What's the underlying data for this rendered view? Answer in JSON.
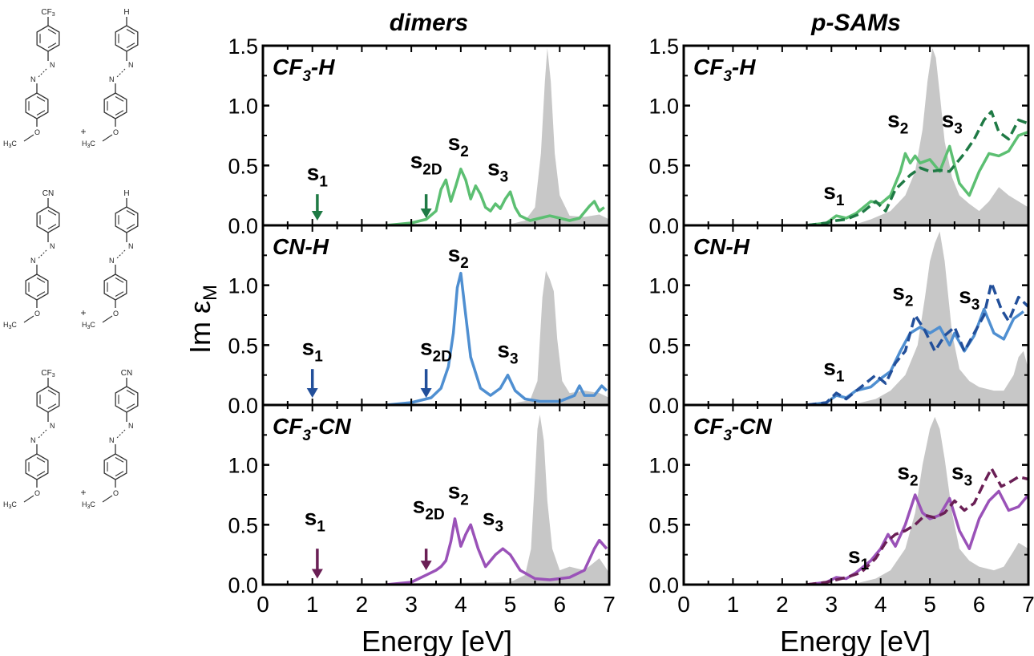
{
  "figure": {
    "columns": [
      {
        "title": "dimers"
      },
      {
        "title": "p-SAMs"
      }
    ],
    "ylabel": {
      "main": "Im ε",
      "sub": "M"
    },
    "xlabel": "Energy [eV]",
    "rows": [
      {
        "label_main": "CF",
        "label_sub": "3",
        "label_rest": "-H",
        "molecules": [
          {
            "top": "CF",
            "top_sub": "3",
            "bottom": "H3C",
            "bottom_sub": "3"
          },
          {
            "top": "H",
            "top_sub": "",
            "bottom": "H3C",
            "bottom_sub": "3"
          }
        ]
      },
      {
        "label_main": "CN-H",
        "label_sub": "",
        "label_rest": "",
        "molecules": [
          {
            "top": "CN",
            "top_sub": ""
          },
          {
            "top": "H",
            "top_sub": ""
          }
        ]
      },
      {
        "label_main": "CF",
        "label_sub": "3",
        "label_rest": "-CN",
        "molecules": [
          {
            "top": "CF",
            "top_sub": "3"
          },
          {
            "top": "CN",
            "top_sub": ""
          }
        ]
      }
    ],
    "molecule_text": {
      "plus": "+",
      "O": "O",
      "N": "N",
      "H3C": "H",
      "H3C_sub": "3",
      "H3C_C": "C"
    }
  },
  "colors": {
    "green": "#5cbf72",
    "green_dark": "#1f7a45",
    "blue": "#4f8fd1",
    "blue_dark": "#224f9a",
    "purple": "#9a52b8",
    "purple_dark": "#6a1f55",
    "gray_fill": "#c7c7c7"
  },
  "chart_data": [
    {
      "type": "line",
      "panel": "dimers CF3-H",
      "xlim": [
        0,
        7
      ],
      "ylim": [
        0,
        1.5
      ],
      "yticks": [
        "0.0",
        "0.5",
        "1.0",
        "1.5"
      ],
      "xticks": [
        "0",
        "1",
        "2",
        "3",
        "4",
        "5",
        "6",
        "7"
      ],
      "gray_area": {
        "x": [
          0,
          5.0,
          5.3,
          5.5,
          5.62,
          5.7,
          5.75,
          5.82,
          5.9,
          6.0,
          6.2,
          6.5,
          6.8,
          7.0
        ],
        "y": [
          0,
          0.01,
          0.04,
          0.15,
          0.6,
          1.2,
          1.48,
          1.2,
          0.6,
          0.25,
          0.08,
          0.07,
          0.09,
          0.05
        ]
      },
      "series": [
        {
          "style": "solid",
          "color": "green",
          "x": [
            2.5,
            3.0,
            3.3,
            3.5,
            3.6,
            3.7,
            3.8,
            3.9,
            4.0,
            4.1,
            4.2,
            4.3,
            4.4,
            4.5,
            4.6,
            4.7,
            4.8,
            4.9,
            5.0,
            5.1,
            5.2,
            5.4,
            5.6,
            5.8,
            6.0,
            6.2,
            6.4,
            6.6,
            6.7,
            6.8,
            6.9
          ],
          "y": [
            0.0,
            0.02,
            0.05,
            0.12,
            0.3,
            0.38,
            0.2,
            0.33,
            0.47,
            0.38,
            0.22,
            0.33,
            0.26,
            0.15,
            0.12,
            0.18,
            0.14,
            0.22,
            0.28,
            0.15,
            0.08,
            0.04,
            0.06,
            0.08,
            0.06,
            0.04,
            0.06,
            0.16,
            0.2,
            0.12,
            0.15
          ]
        }
      ],
      "annotations": [
        {
          "text": "s",
          "sub": "1",
          "x": 1.1,
          "y": 0.38
        },
        {
          "text": "s",
          "sub": "2D",
          "x": 3.3,
          "y": 0.48
        },
        {
          "text": "s",
          "sub": "2",
          "x": 3.95,
          "y": 0.63
        },
        {
          "text": "s",
          "sub": "3",
          "x": 4.75,
          "y": 0.42
        }
      ],
      "arrows": [
        {
          "x": 1.1,
          "y_top": 0.26,
          "y_bottom": 0.04,
          "color": "green_dark"
        },
        {
          "x": 3.3,
          "y_top": 0.26,
          "y_bottom": 0.06,
          "color": "green_dark"
        }
      ]
    },
    {
      "type": "line",
      "panel": "dimers CN-H",
      "xlim": [
        0,
        7
      ],
      "ylim": [
        0,
        1.5
      ],
      "yticks": [
        "0.0",
        "0.5",
        "1.0"
      ],
      "gray_area": {
        "x": [
          0,
          5.0,
          5.4,
          5.55,
          5.65,
          5.72,
          5.8,
          5.88,
          5.95,
          6.05,
          6.2,
          6.5,
          6.8,
          7.0
        ],
        "y": [
          0,
          0.01,
          0.04,
          0.2,
          0.9,
          1.12,
          1.05,
          0.95,
          0.55,
          0.2,
          0.1,
          0.12,
          0.1,
          0.06
        ]
      },
      "series": [
        {
          "style": "solid",
          "color": "blue",
          "x": [
            2.5,
            3.0,
            3.4,
            3.6,
            3.75,
            3.85,
            3.93,
            4.0,
            4.1,
            4.2,
            4.4,
            4.6,
            4.8,
            4.95,
            5.1,
            5.3,
            5.6,
            6.0,
            6.3,
            6.4,
            6.5,
            6.7,
            6.85,
            6.95
          ],
          "y": [
            0.0,
            0.02,
            0.06,
            0.14,
            0.32,
            0.6,
            0.98,
            1.1,
            0.75,
            0.4,
            0.14,
            0.08,
            0.14,
            0.25,
            0.12,
            0.05,
            0.03,
            0.03,
            0.08,
            0.16,
            0.08,
            0.08,
            0.16,
            0.12
          ]
        }
      ],
      "annotations": [
        {
          "text": "s",
          "sub": "1",
          "x": 1.0,
          "y": 0.42
        },
        {
          "text": "s",
          "sub": "2D",
          "x": 3.5,
          "y": 0.42
        },
        {
          "text": "s",
          "sub": "2",
          "x": 3.95,
          "y": 1.2
        },
        {
          "text": "s",
          "sub": "3",
          "x": 4.95,
          "y": 0.4
        }
      ],
      "arrows": [
        {
          "x": 1.0,
          "y_top": 0.3,
          "y_bottom": 0.06,
          "color": "blue_dark"
        },
        {
          "x": 3.3,
          "y_top": 0.3,
          "y_bottom": 0.06,
          "color": "blue_dark"
        }
      ]
    },
    {
      "type": "line",
      "panel": "dimers CF3-CN",
      "xlim": [
        0,
        7
      ],
      "ylim": [
        0,
        1.5
      ],
      "yticks": [
        "0.0",
        "0.5",
        "1.0"
      ],
      "gray_area": {
        "x": [
          0,
          5.0,
          5.3,
          5.42,
          5.5,
          5.55,
          5.6,
          5.68,
          5.75,
          5.85,
          6.0,
          6.2,
          6.5,
          6.8,
          7.0
        ],
        "y": [
          0,
          0.02,
          0.08,
          0.3,
          0.9,
          1.3,
          1.42,
          1.2,
          0.7,
          0.3,
          0.12,
          0.15,
          0.12,
          0.22,
          0.1
        ]
      },
      "series": [
        {
          "style": "solid",
          "color": "purple",
          "x": [
            2.5,
            3.0,
            3.3,
            3.5,
            3.6,
            3.7,
            3.8,
            3.88,
            4.0,
            4.1,
            4.2,
            4.35,
            4.5,
            4.7,
            4.85,
            5.0,
            5.2,
            5.5,
            5.8,
            6.2,
            6.5,
            6.7,
            6.8,
            6.95
          ],
          "y": [
            0.0,
            0.02,
            0.08,
            0.12,
            0.15,
            0.2,
            0.36,
            0.55,
            0.32,
            0.42,
            0.5,
            0.3,
            0.15,
            0.25,
            0.3,
            0.25,
            0.12,
            0.05,
            0.04,
            0.06,
            0.12,
            0.3,
            0.37,
            0.3
          ]
        }
      ],
      "annotations": [
        {
          "text": "s",
          "sub": "1",
          "x": 1.05,
          "y": 0.5
        },
        {
          "text": "s",
          "sub": "2D",
          "x": 3.35,
          "y": 0.6
        },
        {
          "text": "s",
          "sub": "2",
          "x": 3.95,
          "y": 0.72
        },
        {
          "text": "s",
          "sub": "3",
          "x": 4.65,
          "y": 0.5
        }
      ],
      "arrows": [
        {
          "x": 1.1,
          "y_top": 0.3,
          "y_bottom": 0.05,
          "color": "purple_dark"
        },
        {
          "x": 3.3,
          "y_top": 0.3,
          "y_bottom": 0.12,
          "color": "purple_dark"
        }
      ]
    },
    {
      "type": "line",
      "panel": "p-SAMs CF3-H",
      "xlim": [
        0,
        7
      ],
      "ylim": [
        0,
        1.5
      ],
      "yticks": [
        "0.0",
        "0.5",
        "1.0",
        "1.5"
      ],
      "xticks": [
        "0",
        "1",
        "2",
        "3",
        "4",
        "5",
        "6",
        "7"
      ],
      "gray_area": {
        "x": [
          0,
          3.5,
          3.8,
          4.2,
          4.5,
          4.7,
          4.85,
          4.95,
          5.05,
          5.12,
          5.2,
          5.3,
          5.45,
          5.6,
          5.8,
          6.0,
          6.2,
          6.4,
          6.6,
          6.8,
          7.0
        ],
        "y": [
          0,
          0.01,
          0.05,
          0.12,
          0.25,
          0.45,
          0.8,
          1.2,
          1.48,
          1.4,
          1.1,
          0.7,
          0.4,
          0.25,
          0.18,
          0.12,
          0.2,
          0.32,
          0.25,
          0.2,
          0.15
        ]
      },
      "series": [
        {
          "style": "solid",
          "color": "green",
          "x": [
            2.5,
            2.9,
            3.1,
            3.3,
            3.5,
            3.8,
            4.0,
            4.2,
            4.4,
            4.5,
            4.6,
            4.7,
            4.8,
            5.0,
            5.2,
            5.4,
            5.5,
            5.6,
            5.8,
            6.0,
            6.2,
            6.4,
            6.6,
            6.8,
            7.0
          ],
          "y": [
            0.0,
            0.02,
            0.08,
            0.06,
            0.1,
            0.2,
            0.18,
            0.25,
            0.45,
            0.6,
            0.52,
            0.58,
            0.52,
            0.55,
            0.45,
            0.66,
            0.5,
            0.35,
            0.25,
            0.45,
            0.6,
            0.58,
            0.62,
            0.75,
            0.78
          ]
        },
        {
          "style": "dashed",
          "color": "green_dark",
          "x": [
            2.5,
            2.9,
            3.1,
            3.3,
            3.6,
            3.9,
            4.1,
            4.3,
            4.6,
            4.8,
            5.0,
            5.2,
            5.4,
            5.7,
            5.9,
            6.1,
            6.25,
            6.4,
            6.6,
            6.8,
            7.0
          ],
          "y": [
            0.0,
            0.02,
            0.04,
            0.05,
            0.1,
            0.2,
            0.12,
            0.3,
            0.42,
            0.48,
            0.45,
            0.46,
            0.45,
            0.6,
            0.72,
            0.88,
            0.95,
            0.78,
            0.72,
            0.88,
            0.85
          ]
        }
      ],
      "annotations": [
        {
          "text": "s",
          "sub": "1",
          "x": 3.05,
          "y": 0.22
        },
        {
          "text": "s",
          "sub": "2",
          "x": 4.35,
          "y": 0.82
        },
        {
          "text": "s",
          "sub": "3",
          "x": 5.45,
          "y": 0.82
        }
      ]
    },
    {
      "type": "line",
      "panel": "p-SAMs CN-H",
      "xlim": [
        0,
        7
      ],
      "ylim": [
        0,
        1.5
      ],
      "yticks": [
        "0.0",
        "0.5",
        "1.0"
      ],
      "gray_area": {
        "x": [
          0,
          3.5,
          3.9,
          4.2,
          4.5,
          4.75,
          4.9,
          5.0,
          5.1,
          5.2,
          5.3,
          5.45,
          5.6,
          5.8,
          6.0,
          6.3,
          6.5,
          6.7,
          6.8,
          6.9,
          7.0
        ],
        "y": [
          0,
          0.01,
          0.05,
          0.12,
          0.25,
          0.5,
          0.9,
          1.2,
          1.35,
          1.45,
          1.2,
          0.6,
          0.3,
          0.2,
          0.15,
          0.12,
          0.12,
          0.25,
          0.4,
          0.45,
          0.3
        ]
      },
      "series": [
        {
          "style": "solid",
          "color": "blue",
          "x": [
            2.5,
            2.9,
            3.1,
            3.3,
            3.5,
            3.8,
            4.0,
            4.2,
            4.4,
            4.6,
            4.8,
            5.0,
            5.2,
            5.4,
            5.5,
            5.7,
            5.9,
            6.1,
            6.3,
            6.5,
            6.7,
            6.9
          ],
          "y": [
            0.0,
            0.02,
            0.08,
            0.06,
            0.12,
            0.15,
            0.22,
            0.28,
            0.45,
            0.6,
            0.65,
            0.6,
            0.65,
            0.5,
            0.6,
            0.45,
            0.58,
            0.8,
            0.6,
            0.55,
            0.72,
            0.78
          ]
        },
        {
          "style": "dashed",
          "color": "blue_dark",
          "x": [
            2.5,
            2.9,
            3.1,
            3.3,
            3.6,
            3.9,
            4.1,
            4.3,
            4.5,
            4.7,
            4.9,
            5.1,
            5.3,
            5.5,
            5.7,
            5.9,
            6.1,
            6.25,
            6.45,
            6.6,
            6.8,
            7.0
          ],
          "y": [
            0.0,
            0.02,
            0.1,
            0.05,
            0.15,
            0.25,
            0.18,
            0.35,
            0.45,
            0.75,
            0.62,
            0.45,
            0.58,
            0.65,
            0.45,
            0.6,
            0.75,
            1.02,
            0.8,
            0.7,
            0.9,
            0.82
          ]
        }
      ],
      "annotations": [
        {
          "text": "s",
          "sub": "1",
          "x": 3.05,
          "y": 0.25
        },
        {
          "text": "s",
          "sub": "2",
          "x": 4.45,
          "y": 0.88
        },
        {
          "text": "s",
          "sub": "3",
          "x": 5.8,
          "y": 0.85
        }
      ]
    },
    {
      "type": "line",
      "panel": "p-SAMs CF3-CN",
      "xlim": [
        0,
        7
      ],
      "ylim": [
        0,
        1.5
      ],
      "yticks": [
        "0.0",
        "0.5",
        "1.0"
      ],
      "gray_area": {
        "x": [
          0,
          3.5,
          3.9,
          4.2,
          4.5,
          4.7,
          4.85,
          5.0,
          5.1,
          5.2,
          5.3,
          5.45,
          5.6,
          5.8,
          6.0,
          6.3,
          6.5,
          6.7,
          6.8,
          7.0
        ],
        "y": [
          0,
          0.01,
          0.05,
          0.12,
          0.3,
          0.6,
          1.0,
          1.3,
          1.4,
          1.3,
          1.05,
          0.6,
          0.3,
          0.2,
          0.15,
          0.12,
          0.15,
          0.28,
          0.35,
          0.3
        ]
      },
      "series": [
        {
          "style": "solid",
          "color": "purple",
          "x": [
            2.5,
            2.9,
            3.1,
            3.3,
            3.5,
            3.8,
            4.0,
            4.15,
            4.3,
            4.5,
            4.7,
            4.85,
            5.0,
            5.2,
            5.4,
            5.6,
            5.8,
            6.0,
            6.2,
            6.4,
            6.6,
            6.8,
            7.0
          ],
          "y": [
            0.0,
            0.02,
            0.06,
            0.05,
            0.1,
            0.2,
            0.3,
            0.42,
            0.32,
            0.5,
            0.75,
            0.6,
            0.55,
            0.58,
            0.72,
            0.45,
            0.3,
            0.55,
            0.7,
            0.78,
            0.62,
            0.65,
            0.75
          ]
        },
        {
          "style": "dashed",
          "color": "purple_dark",
          "x": [
            2.5,
            2.9,
            3.1,
            3.3,
            3.6,
            3.9,
            4.1,
            4.3,
            4.5,
            4.7,
            4.9,
            5.1,
            5.3,
            5.5,
            5.7,
            5.9,
            6.1,
            6.25,
            6.45,
            6.6,
            6.8,
            7.0
          ],
          "y": [
            0.0,
            0.02,
            0.04,
            0.06,
            0.1,
            0.22,
            0.35,
            0.42,
            0.45,
            0.5,
            0.58,
            0.56,
            0.6,
            0.7,
            0.62,
            0.68,
            0.85,
            0.97,
            0.82,
            0.85,
            0.9,
            0.88
          ]
        }
      ],
      "annotations": [
        {
          "text": "s",
          "sub": "1",
          "x": 3.55,
          "y": 0.18
        },
        {
          "text": "s",
          "sub": "2",
          "x": 4.55,
          "y": 0.88
        },
        {
          "text": "s",
          "sub": "3",
          "x": 5.65,
          "y": 0.88
        }
      ]
    }
  ]
}
